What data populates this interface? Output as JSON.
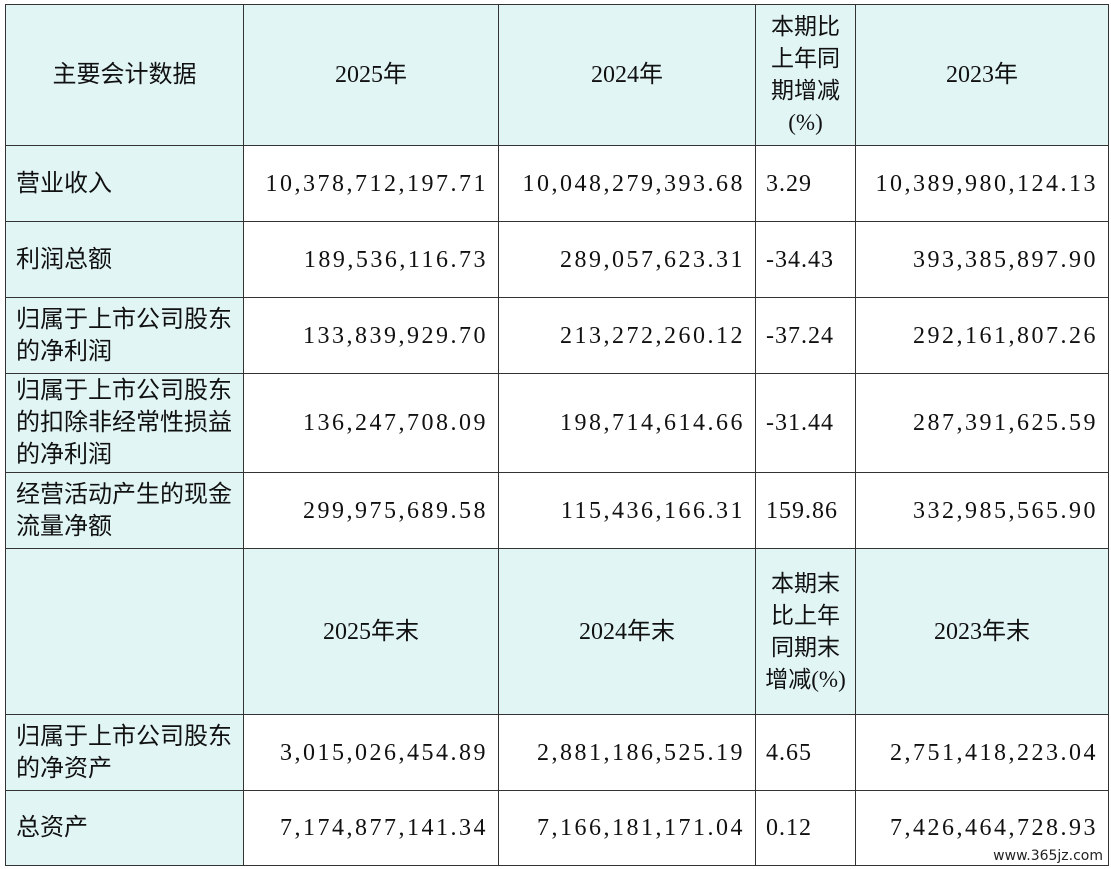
{
  "table": {
    "header": [
      "主要会计数据",
      "2025年",
      "2024年",
      "本期比上年同期增减(%)",
      "2023年"
    ],
    "rows": [
      [
        "营业收入",
        "10,378,712,197.71",
        "10,048,279,393.68",
        "3.29",
        "10,389,980,124.13"
      ],
      [
        "利润总额",
        "189,536,116.73",
        "289,057,623.31",
        "-34.43",
        "393,385,897.90"
      ],
      [
        "归属于上市公司股东的净利润",
        "133,839,929.70",
        "213,272,260.12",
        "-37.24",
        "292,161,807.26"
      ],
      [
        "归属于上市公司股东的扣除非经常性损益的净利润",
        "136,247,708.09",
        "198,714,614.66",
        "-31.44",
        "287,391,625.59"
      ],
      [
        "经营活动产生的现金流量净额",
        "299,975,689.58",
        "115,436,166.31",
        "159.86",
        "332,985,565.90"
      ]
    ],
    "header2": [
      null,
      "2025年末",
      "2024年末",
      "本期末比上年同期末增减(%)",
      "2023年末"
    ],
    "rows2": [
      [
        "归属于上市公司股东的净资产",
        "3,015,026,454.89",
        "2,881,186,525.19",
        "4.65",
        "2,751,418,223.04"
      ],
      [
        "总资产",
        "7,174,877,141.34",
        "7,166,181,171.04",
        "0.12",
        "7,426,464,728.93"
      ]
    ]
  },
  "watermark": "www.365jz.com"
}
